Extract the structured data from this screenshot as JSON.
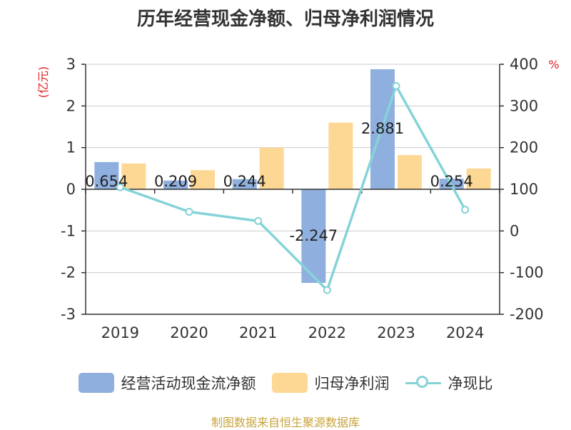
{
  "chart_data": {
    "type": "bar",
    "title": "历年经营现金净额、归母净利润情况",
    "categories": [
      "2019",
      "2020",
      "2021",
      "2022",
      "2023",
      "2024"
    ],
    "y_left": {
      "label": "(亿元)",
      "ticks": [
        "3",
        "2",
        "1",
        "0",
        "-1",
        "-2",
        "-3"
      ],
      "ylim": [
        -3,
        3
      ]
    },
    "y_right": {
      "label": "%",
      "ticks": [
        "400",
        "300",
        "200",
        "100",
        "0",
        "-100",
        "-200"
      ],
      "ylim": [
        -200,
        400
      ]
    },
    "series": [
      {
        "name": "经营活动现金流净额",
        "type": "bar",
        "axis": "left",
        "color": "#8fb0de",
        "values": [
          0.654,
          0.209,
          0.244,
          -2.247,
          2.881,
          0.254
        ],
        "labels": [
          "0.654",
          "0.209",
          "0.244",
          "-2.247",
          "2.881",
          "0.254"
        ]
      },
      {
        "name": "归母净利润",
        "type": "bar",
        "axis": "left",
        "color": "#fdd894",
        "values": [
          0.62,
          0.46,
          1.0,
          1.6,
          0.82,
          0.5
        ]
      },
      {
        "name": "净现比",
        "type": "line",
        "axis": "right",
        "color": "#85d3d8",
        "values": [
          105,
          46,
          24,
          -142,
          348,
          51
        ]
      }
    ],
    "grid": true,
    "legend_position": "bottom"
  },
  "source": "制图数据来自恒生聚源数据库"
}
